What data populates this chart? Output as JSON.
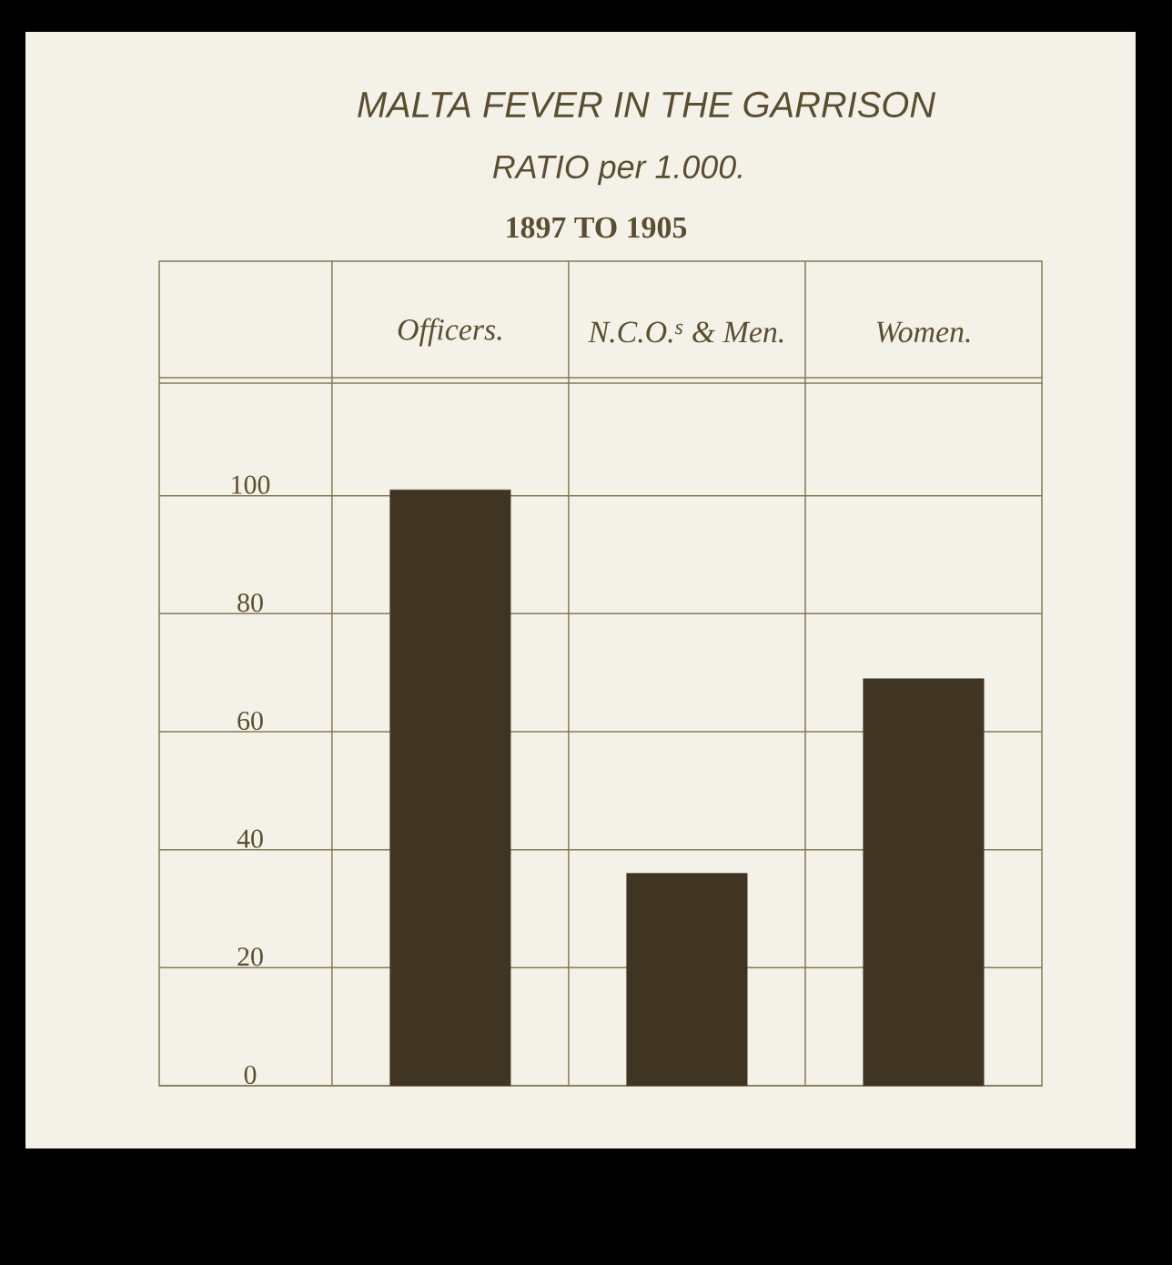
{
  "chart_data": {
    "type": "bar",
    "title": "MALTA FEVER IN THE GARRISON",
    "subtitle": "RATIO per 1.000.",
    "annotations": [
      "1897 TO 1905"
    ],
    "categories": [
      "Officers.",
      "N.C.O.$^{s}$ & Men.",
      "Women."
    ],
    "values": [
      101,
      36,
      69
    ],
    "color": "#3f3522",
    "ylim": [
      0,
      120
    ],
    "yticks": [
      0,
      20,
      40,
      60,
      80,
      100
    ],
    "grid": true
  }
}
